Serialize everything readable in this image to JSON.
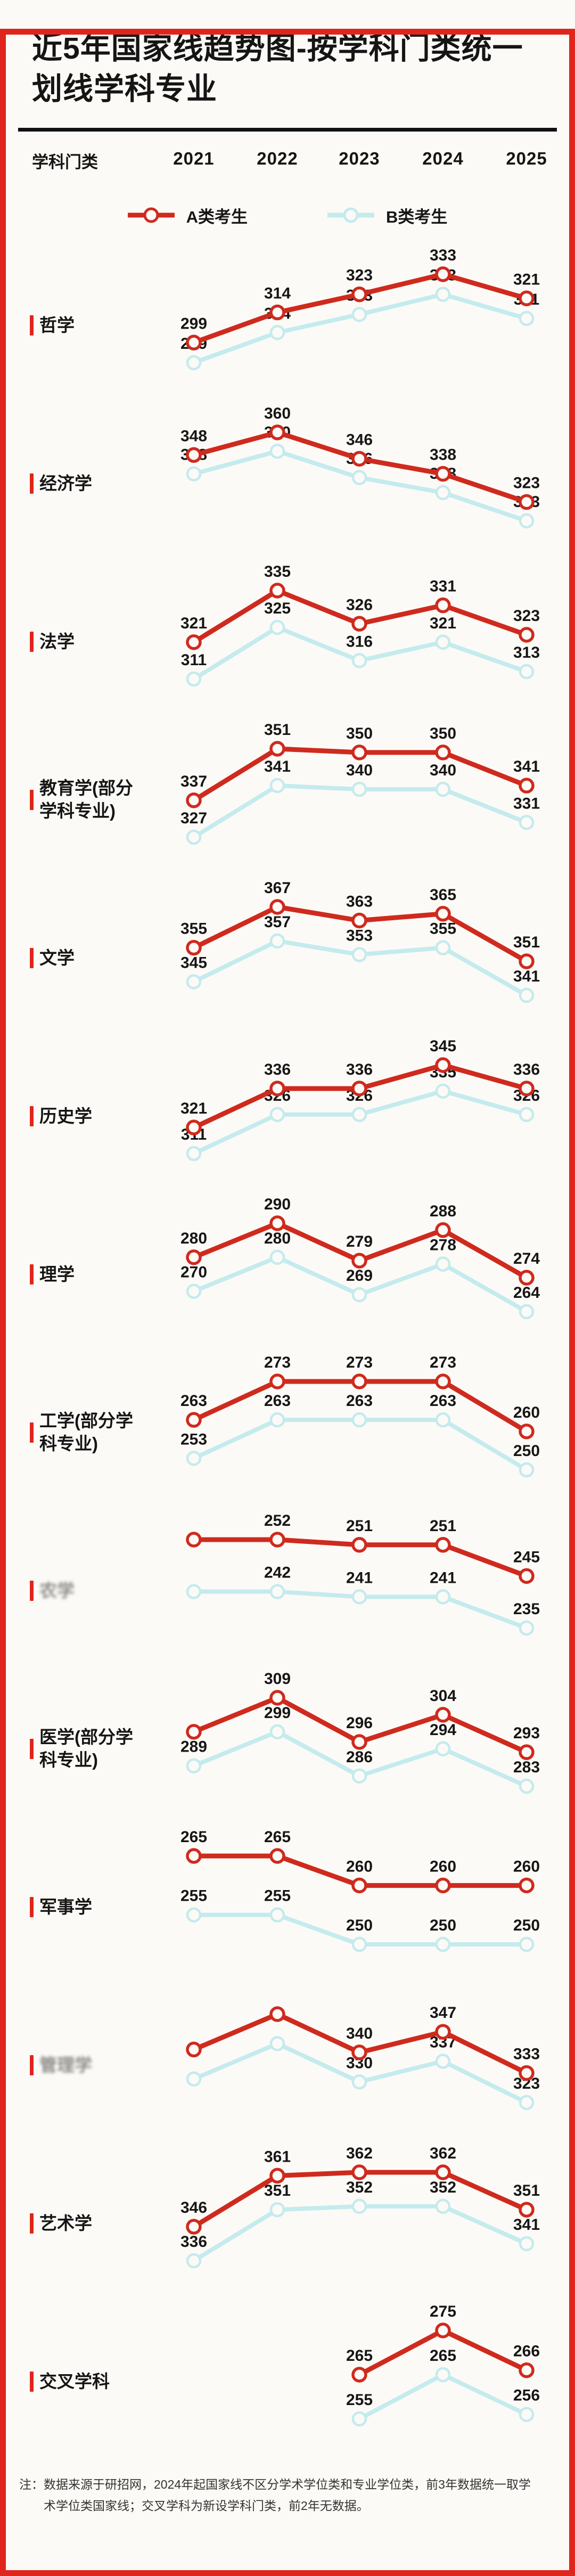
{
  "page": {
    "title_line1": "近5年国家线趋势图-按学科门类统一",
    "title_line2": "划线学科专业",
    "accent_color": "#e0251c",
    "background_color": "#fcfaf6"
  },
  "header": {
    "col_label": "学科门类",
    "years": [
      "2021",
      "2022",
      "2023",
      "2024",
      "2025"
    ]
  },
  "legend": [
    {
      "label": "A类考生",
      "color": "#cf2a1e"
    },
    {
      "label": "B类考生",
      "color": "#c4ebee"
    }
  ],
  "footnote": {
    "prefix": "注：",
    "text": "数据来源于研招网，2024年起国家线不区分学术学位类和专业学位类，前3年数据统一取学术学位类国家线；交叉学科为新设学科门类，前2年无数据。"
  },
  "chart_data": {
    "type": "line",
    "x": [
      "2021",
      "2022",
      "2023",
      "2024",
      "2025"
    ],
    "series_names": [
      "A类考生",
      "B类考生"
    ],
    "colors": {
      "a": "#cf2a1e",
      "b": "#c4ebee"
    },
    "legend_position": "top",
    "grid": false,
    "categories": [
      {
        "name": "哲学",
        "faded": false,
        "a": {
          "values": [
            299,
            314,
            323,
            333,
            321
          ],
          "labels": [
            "299",
            "314",
            "323",
            "333",
            "321"
          ]
        },
        "b": {
          "values": [
            289,
            304,
            313,
            323,
            311
          ],
          "labels": [
            "289",
            "304",
            "313",
            "323",
            "311"
          ]
        }
      },
      {
        "name": "经济学",
        "faded": false,
        "a": {
          "values": [
            348,
            360,
            346,
            338,
            323
          ],
          "labels": [
            "348",
            "360",
            "346",
            "338",
            "323"
          ]
        },
        "b": {
          "values": [
            338,
            350,
            336,
            328,
            313
          ],
          "labels": [
            "338",
            "350",
            "336",
            "328",
            "313"
          ]
        }
      },
      {
        "name": "法学",
        "faded": false,
        "a": {
          "values": [
            321,
            335,
            326,
            331,
            323
          ],
          "labels": [
            "321",
            "335",
            "326",
            "331",
            "323"
          ]
        },
        "b": {
          "values": [
            311,
            325,
            316,
            321,
            313
          ],
          "labels": [
            "311",
            "325",
            "316",
            "321",
            "313"
          ]
        }
      },
      {
        "name": "教育学(部分学科专业)",
        "faded": false,
        "a": {
          "values": [
            337,
            351,
            350,
            350,
            341
          ],
          "labels": [
            "337",
            "351",
            "350",
            "350",
            "341"
          ]
        },
        "b": {
          "values": [
            327,
            341,
            340,
            340,
            331
          ],
          "labels": [
            "327",
            "341",
            "340",
            "340",
            "331"
          ]
        }
      },
      {
        "name": "文学",
        "faded": false,
        "a": {
          "values": [
            355,
            367,
            363,
            365,
            351
          ],
          "labels": [
            "355",
            "367",
            "363",
            "365",
            "351"
          ]
        },
        "b": {
          "values": [
            345,
            357,
            353,
            355,
            341
          ],
          "labels": [
            "345",
            "357",
            "353",
            "355",
            "341"
          ]
        }
      },
      {
        "name": "历史学",
        "faded": false,
        "a": {
          "values": [
            321,
            336,
            336,
            345,
            336
          ],
          "labels": [
            "321",
            "336",
            "336",
            "345",
            "336"
          ]
        },
        "b": {
          "values": [
            311,
            326,
            326,
            335,
            326
          ],
          "labels": [
            "311",
            "326",
            "326",
            "335",
            "326"
          ]
        }
      },
      {
        "name": "理学",
        "faded": false,
        "a": {
          "values": [
            280,
            290,
            279,
            288,
            274
          ],
          "labels": [
            "280",
            "290",
            "279",
            "288",
            "274"
          ]
        },
        "b": {
          "values": [
            270,
            280,
            269,
            278,
            264
          ],
          "labels": [
            "270",
            "280",
            "269",
            "278",
            "264"
          ]
        }
      },
      {
        "name": "工学(部分学科专业)",
        "faded": false,
        "a": {
          "values": [
            263,
            273,
            273,
            273,
            260
          ],
          "labels": [
            "263",
            "273",
            "273",
            "273",
            "260"
          ]
        },
        "b": {
          "values": [
            253,
            263,
            263,
            263,
            250
          ],
          "labels": [
            "253",
            "263",
            "263",
            "263",
            "250"
          ]
        }
      },
      {
        "name": "农学",
        "faded": true,
        "a": {
          "values": [
            252,
            252,
            251,
            251,
            245
          ],
          "labels": [
            "",
            "252",
            "251",
            "251",
            "245"
          ]
        },
        "b": {
          "values": [
            242,
            242,
            241,
            241,
            235
          ],
          "labels": [
            "",
            "242",
            "241",
            "241",
            "235"
          ]
        }
      },
      {
        "name": "医学(部分学科专业)",
        "faded": false,
        "a": {
          "values": [
            299,
            309,
            296,
            304,
            293
          ],
          "labels": [
            "",
            "309",
            "296",
            "304",
            "293"
          ]
        },
        "b": {
          "values": [
            289,
            299,
            286,
            294,
            283
          ],
          "labels": [
            "289",
            "299",
            "286",
            "294",
            "283"
          ]
        }
      },
      {
        "name": "军事学",
        "faded": false,
        "a": {
          "values": [
            265,
            265,
            260,
            260,
            260
          ],
          "labels": [
            "265",
            "265",
            "260",
            "260",
            "260"
          ]
        },
        "b": {
          "values": [
            255,
            255,
            250,
            250,
            250
          ],
          "labels": [
            "255",
            "255",
            "250",
            "250",
            "250"
          ]
        }
      },
      {
        "name": "管理学",
        "faded": true,
        "a": {
          "values": [
            341,
            353,
            340,
            347,
            333
          ],
          "labels": [
            "",
            "",
            "340",
            "347",
            "333"
          ]
        },
        "b": {
          "values": [
            331,
            343,
            330,
            337,
            323
          ],
          "labels": [
            "",
            "",
            "330",
            "337",
            "323"
          ]
        }
      },
      {
        "name": "艺术学",
        "faded": false,
        "a": {
          "values": [
            346,
            361,
            362,
            362,
            351
          ],
          "labels": [
            "346",
            "361",
            "362",
            "362",
            "351"
          ]
        },
        "b": {
          "values": [
            336,
            351,
            352,
            352,
            341
          ],
          "labels": [
            "336",
            "351",
            "352",
            "352",
            "341"
          ]
        }
      },
      {
        "name": "交叉学科",
        "faded": false,
        "a": {
          "values": [
            null,
            null,
            265,
            275,
            266
          ],
          "labels": [
            "",
            "",
            "265",
            "275",
            "266"
          ]
        },
        "b": {
          "values": [
            null,
            null,
            255,
            265,
            256
          ],
          "labels": [
            "",
            "",
            "255",
            "265",
            "256"
          ]
        }
      }
    ]
  }
}
